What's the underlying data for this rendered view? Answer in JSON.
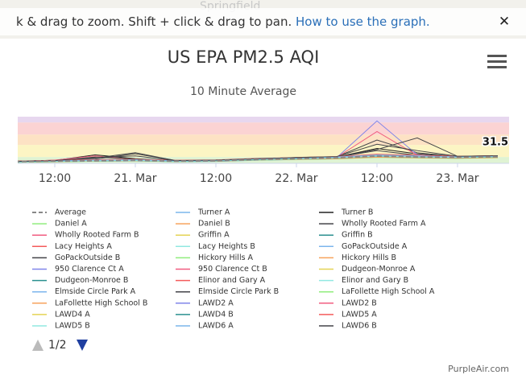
{
  "banner": {
    "map_label": "Springfield",
    "text": "k & drag to zoom. Shift + click & drag to pan. ",
    "link": "How to use the graph.",
    "close": "✕"
  },
  "chart_data": {
    "type": "line",
    "title": "US EPA PM2.5 AQI",
    "subtitle": "10 Minute Average",
    "categories": [
      null,
      "12:00",
      null,
      "21. Mar",
      null,
      "12:00",
      null,
      "22. Mar",
      null,
      "12:00",
      null,
      "23. Mar",
      null
    ],
    "ylim": [
      0,
      220
    ],
    "bands": [
      {
        "from": 0,
        "to": 30,
        "color": "#dff3d3"
      },
      {
        "from": 30,
        "to": 87,
        "color": "#fcf5c4"
      },
      {
        "from": 87,
        "to": 136,
        "color": "#fde2c4"
      },
      {
        "from": 136,
        "to": 193,
        "color": "#fbd3d3"
      },
      {
        "from": 193,
        "to": 220,
        "color": "#e7d7ef"
      }
    ],
    "series": [
      {
        "name": "Average",
        "color": "#888888",
        "dashed": true,
        "values": [
          8,
          10,
          12,
          14,
          10,
          12,
          18,
          22,
          26,
          34,
          30,
          28,
          31.5
        ]
      },
      {
        "name": "Turner A",
        "color": "#7cb5ec",
        "values": [
          6,
          9,
          11,
          15,
          9,
          11,
          17,
          20,
          25,
          40,
          32,
          27,
          30
        ]
      },
      {
        "name": "Turner B",
        "color": "#222222",
        "values": [
          10,
          14,
          40,
          22,
          12,
          14,
          20,
          26,
          30,
          70,
          45,
          30,
          33
        ]
      },
      {
        "name": "Daniel A",
        "color": "#90ed7d",
        "values": [
          5,
          8,
          10,
          12,
          8,
          10,
          15,
          19,
          22,
          30,
          27,
          25,
          28
        ]
      },
      {
        "name": "Daniel B",
        "color": "#f7a35c",
        "values": [
          7,
          11,
          14,
          16,
          11,
          13,
          19,
          24,
          28,
          36,
          31,
          29,
          32
        ]
      },
      {
        "name": "Wholly Rooted Farm A",
        "color": "#434348",
        "values": [
          9,
          12,
          20,
          45,
          14,
          13,
          21,
          25,
          29,
          60,
          38,
          31,
          34
        ]
      },
      {
        "name": "Wholly Rooted Farm B",
        "color": "#f15c80",
        "values": [
          8,
          15,
          35,
          18,
          10,
          12,
          17,
          21,
          27,
          33,
          29,
          26,
          30
        ]
      },
      {
        "name": "Griffin A",
        "color": "#e4d354",
        "values": [
          6,
          10,
          13,
          15,
          11,
          12,
          20,
          23,
          27,
          38,
          34,
          30,
          33
        ]
      },
      {
        "name": "Griffin B",
        "color": "#2b908f",
        "values": [
          7,
          9,
          12,
          13,
          9,
          11,
          16,
          20,
          24,
          31,
          28,
          26,
          29
        ]
      },
      {
        "name": "Lacy Heights A",
        "color": "#f45b5b",
        "values": [
          9,
          12,
          16,
          18,
          12,
          14,
          21,
          25,
          30,
          42,
          36,
          31,
          34
        ]
      },
      {
        "name": "Lacy Heights B",
        "color": "#91e8e1",
        "values": [
          8,
          11,
          14,
          16,
          10,
          12,
          19,
          22,
          26,
          35,
          31,
          28,
          31
        ]
      },
      {
        "name": "GoPackOutside A",
        "color": "#7cb5ec",
        "values": [
          5,
          8,
          10,
          11,
          8,
          9,
          14,
          18,
          22,
          29,
          26,
          24,
          27
        ]
      },
      {
        "name": "GoPackOutside B",
        "color": "#434348",
        "values": [
          10,
          13,
          25,
          50,
          13,
          15,
          20,
          28,
          31,
          110,
          50,
          32,
          35
        ]
      },
      {
        "name": "Hickory Hills A",
        "color": "#90ed7d",
        "values": [
          7,
          10,
          12,
          14,
          10,
          12,
          17,
          21,
          25,
          32,
          29,
          27,
          30
        ]
      },
      {
        "name": "Hickory Hills B",
        "color": "#f7a35c",
        "values": [
          8,
          11,
          13,
          15,
          11,
          13,
          18,
          22,
          26,
          34,
          30,
          28,
          31
        ]
      },
      {
        "name": "950 Clarence Ct A",
        "color": "#8085e9",
        "values": [
          6,
          9,
          12,
          14,
          10,
          11,
          18,
          23,
          27,
          200,
          40,
          29,
          32
        ]
      },
      {
        "name": "950 Clarence Ct B",
        "color": "#f15c80",
        "values": [
          7,
          10,
          13,
          15,
          10,
          12,
          18,
          22,
          28,
          150,
          38,
          28,
          31
        ]
      },
      {
        "name": "Dudgeon-Monroe A",
        "color": "#e4d354",
        "values": [
          9,
          12,
          15,
          17,
          12,
          13,
          20,
          24,
          29,
          37,
          33,
          30,
          33
        ]
      },
      {
        "name": "Dudgeon-Monroe B",
        "color": "#2b908f",
        "values": [
          8,
          11,
          14,
          16,
          11,
          12,
          19,
          23,
          28,
          36,
          32,
          29,
          32
        ]
      },
      {
        "name": "Elinor and Gary A",
        "color": "#f45b5b",
        "values": [
          6,
          8,
          11,
          13,
          9,
          10,
          16,
          19,
          23,
          30,
          27,
          25,
          28
        ]
      },
      {
        "name": "Elinor and Gary B",
        "color": "#91e8e1",
        "values": [
          7,
          9,
          12,
          14,
          9,
          11,
          17,
          20,
          24,
          31,
          28,
          26,
          29
        ]
      },
      {
        "name": "Elmside Circle Park A",
        "color": "#7cb5ec",
        "values": [
          8,
          11,
          14,
          16,
          11,
          13,
          20,
          24,
          29,
          39,
          35,
          31,
          34
        ]
      },
      {
        "name": "Elmside Circle Park B",
        "color": "#434348",
        "values": [
          9,
          12,
          30,
          20,
          12,
          14,
          21,
          26,
          31,
          65,
          120,
          33,
          36
        ]
      },
      {
        "name": "LaFollette High School A",
        "color": "#90ed7d",
        "values": [
          5,
          7,
          10,
          12,
          8,
          10,
          15,
          18,
          21,
          28,
          25,
          23,
          26
        ]
      },
      {
        "name": "LaFollette High School B",
        "color": "#f7a35c",
        "values": [
          6,
          8,
          11,
          13,
          9,
          10,
          16,
          19,
          22,
          29,
          26,
          24,
          27
        ]
      },
      {
        "name": "LAWD2 A",
        "color": "#8085e9",
        "values": [
          7,
          10,
          13,
          15,
          10,
          12,
          18,
          22,
          26,
          34,
          30,
          28,
          31
        ]
      },
      {
        "name": "LAWD2 B",
        "color": "#f15c80",
        "values": [
          8,
          11,
          14,
          16,
          11,
          13,
          19,
          23,
          27,
          35,
          31,
          29,
          32
        ]
      },
      {
        "name": "LAWD4 A",
        "color": "#e4d354",
        "values": [
          9,
          13,
          16,
          18,
          13,
          15,
          22,
          26,
          31,
          41,
          36,
          32,
          35
        ]
      },
      {
        "name": "LAWD4 B",
        "color": "#2b908f",
        "values": [
          6,
          9,
          12,
          14,
          9,
          11,
          17,
          21,
          25,
          33,
          29,
          27,
          30
        ]
      },
      {
        "name": "LAWD5 A",
        "color": "#f45b5b",
        "values": [
          10,
          14,
          17,
          19,
          14,
          16,
          23,
          27,
          32,
          43,
          38,
          33,
          36
        ]
      },
      {
        "name": "LAWD5 B",
        "color": "#91e8e1",
        "values": [
          7,
          10,
          12,
          14,
          10,
          12,
          18,
          22,
          26,
          34,
          30,
          28,
          31
        ]
      },
      {
        "name": "LAWD6 A",
        "color": "#7cb5ec",
        "values": [
          8,
          12,
          15,
          17,
          12,
          14,
          21,
          25,
          30,
          40,
          35,
          31,
          34
        ]
      },
      {
        "name": "LAWD6 B",
        "color": "#434348",
        "values": [
          9,
          13,
          28,
          35,
          13,
          15,
          22,
          27,
          32,
          90,
          60,
          33,
          36
        ]
      }
    ],
    "legend_page": "1/2"
  },
  "credit": "PurpleAir.com"
}
